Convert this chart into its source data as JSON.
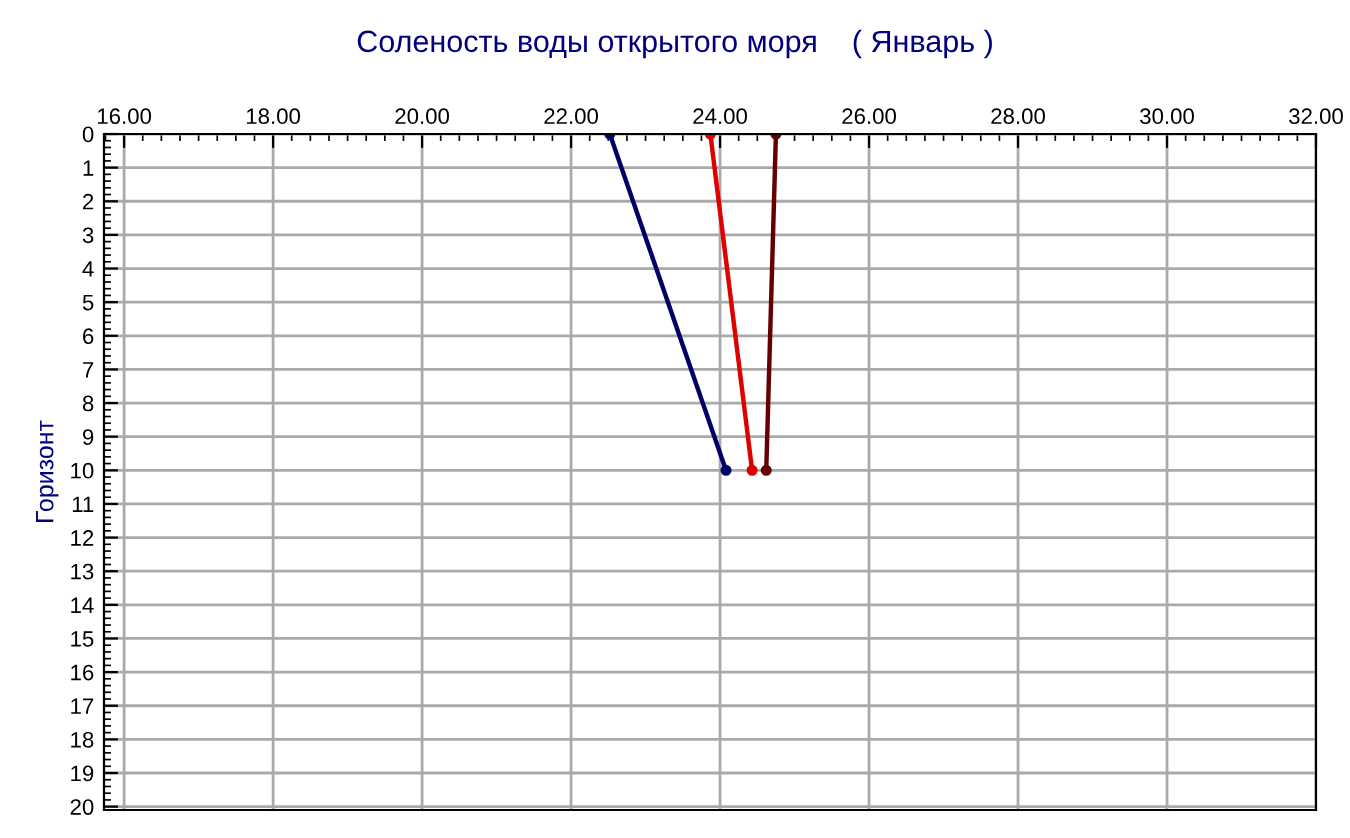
{
  "chart_data": {
    "type": "line",
    "title": "Соленость воды открытого моря    ( Январь )",
    "ylabel": "Горизонт",
    "series": [
      {
        "color": "#000066",
        "x": [
          22.52,
          24.08
        ],
        "values": [
          0,
          10
        ]
      },
      {
        "color": "#dd0000",
        "x": [
          23.87,
          24.43
        ],
        "values": [
          0,
          10
        ]
      },
      {
        "color": "#660000",
        "x": [
          24.75,
          24.62
        ],
        "values": [
          0,
          10
        ]
      }
    ],
    "xlim": [
      15.73,
      32
    ],
    "ylim": [
      20.1,
      0
    ],
    "xticks": [
      {
        "value": 16,
        "label": "16.00"
      },
      {
        "value": 18,
        "label": "18.00"
      },
      {
        "value": 20,
        "label": "20.00"
      },
      {
        "value": 22,
        "label": "22.00"
      },
      {
        "value": 24,
        "label": "24.00"
      },
      {
        "value": 26,
        "label": "26.00"
      },
      {
        "value": 28,
        "label": "28.00"
      },
      {
        "value": 30,
        "label": "30.00"
      },
      {
        "value": 32,
        "label": "32.00"
      }
    ],
    "yticks": [
      0,
      1,
      2,
      3,
      4,
      5,
      6,
      7,
      8,
      9,
      10,
      11,
      12,
      13,
      14,
      15,
      16,
      17,
      18,
      19,
      20
    ],
    "grid": true,
    "marker": "circle",
    "line_style": "solid",
    "legend": false
  }
}
